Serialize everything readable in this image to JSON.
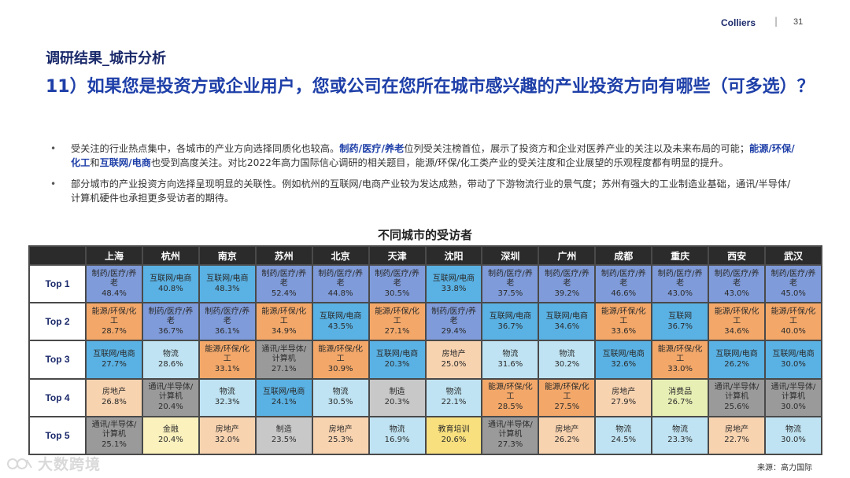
{
  "header": {
    "brand": "Colliers",
    "separator": "|",
    "page_number": "31"
  },
  "section_title": "调研结果_城市分析",
  "main_title": "11）如果您是投资方或企业用户，您或公司在您所在城市感兴趣的产业投资方向有哪些（可多选）？",
  "bullets": {
    "b1": {
      "t1": "受关注的行业热点集中，各城市的产业方向选择同质化也较高。",
      "h1": "制药/医疗/养老",
      "t2": "位列受关注榜首位，展示了投资方和企业对医养产业的关注以及未来布局的可能；",
      "h2": "能源/环保/化工",
      "t3": "和",
      "h3": "互联网/电商",
      "t4": "也受到高度关注。对比2022年高力国际信心调研的相关题目，能源/环保/化工类产业的受关注度和企业展望的乐观程度都有明显的提升。"
    },
    "b2": {
      "t1": "部分城市的产业投资方向选择呈现明显的关联性。例如杭州的互联网/电商产业较为发达成熟，带动了下游物流行业的景气度；苏州有强大的工业制造业基础，通讯/半导体/计算机硬件也承担更多受访者的期待。"
    }
  },
  "table": {
    "title": "不同城市的受访者",
    "cities": [
      "上海",
      "杭州",
      "南京",
      "苏州",
      "北京",
      "天津",
      "沈阳",
      "深圳",
      "广州",
      "成都",
      "重庆",
      "西安",
      "武汉"
    ],
    "rows": [
      {
        "label": "Top 1",
        "cells": [
          {
            "ind": "制药/医疗/养老",
            "pct": "48.4%"
          },
          {
            "ind": "互联网/电商",
            "pct": "40.8%"
          },
          {
            "ind": "互联网/电商",
            "pct": "48.3%"
          },
          {
            "ind": "制药/医疗/养老",
            "pct": "52.4%"
          },
          {
            "ind": "制药/医疗/养老",
            "pct": "44.8%"
          },
          {
            "ind": "制药/医疗/养老",
            "pct": "30.5%"
          },
          {
            "ind": "互联网/电商",
            "pct": "33.8%"
          },
          {
            "ind": "制药/医疗/养老",
            "pct": "37.5%"
          },
          {
            "ind": "制药/医疗/养老",
            "pct": "39.2%"
          },
          {
            "ind": "制药/医疗/养老",
            "pct": "46.6%"
          },
          {
            "ind": "制药/医疗/养老",
            "pct": "43.0%"
          },
          {
            "ind": "制药/医疗/养老",
            "pct": "43.0%"
          },
          {
            "ind": "制药/医疗/养老",
            "pct": "45.0%"
          }
        ]
      },
      {
        "label": "Top 2",
        "cells": [
          {
            "ind": "能源/环保/化工",
            "pct": "28.7%"
          },
          {
            "ind": "制药/医疗/养老",
            "pct": "36.7%"
          },
          {
            "ind": "制药/医疗/养老",
            "pct": "36.1%"
          },
          {
            "ind": "能源/环保/化工",
            "pct": "34.9%"
          },
          {
            "ind": "互联网/电商",
            "pct": "43.5%"
          },
          {
            "ind": "能源/环保/化工",
            "pct": "27.1%"
          },
          {
            "ind": "制药/医疗/养老",
            "pct": "29.4%"
          },
          {
            "ind": "互联网/电商",
            "pct": "36.7%"
          },
          {
            "ind": "互联网/电商",
            "pct": "34.6%"
          },
          {
            "ind": "能源/环保/化工",
            "pct": "33.6%"
          },
          {
            "ind": "互联网",
            "pct": "36.7%"
          },
          {
            "ind": "能源/环保/化工",
            "pct": "34.6%"
          },
          {
            "ind": "能源/环保/化工",
            "pct": "40.0%"
          }
        ]
      },
      {
        "label": "Top 3",
        "cells": [
          {
            "ind": "互联网/电商",
            "pct": "27.7%"
          },
          {
            "ind": "物流",
            "pct": "28.6%"
          },
          {
            "ind": "能源/环保/化工",
            "pct": "33.1%"
          },
          {
            "ind": "通讯/半导体/计算机",
            "pct": "27.1%"
          },
          {
            "ind": "能源/环保/化工",
            "pct": "30.9%"
          },
          {
            "ind": "互联网/电商",
            "pct": "20.3%"
          },
          {
            "ind": "房地产",
            "pct": "25.0%"
          },
          {
            "ind": "物流",
            "pct": "31.6%"
          },
          {
            "ind": "物流",
            "pct": "30.2%"
          },
          {
            "ind": "互联网/电商",
            "pct": "32.6%"
          },
          {
            "ind": "能源/环保/化工",
            "pct": "33.0%"
          },
          {
            "ind": "互联网/电商",
            "pct": "26.2%"
          },
          {
            "ind": "互联网/电商",
            "pct": "30.0%"
          }
        ]
      },
      {
        "label": "Top 4",
        "cells": [
          {
            "ind": "房地产",
            "pct": "26.8%"
          },
          {
            "ind": "通讯/半导体/计算机",
            "pct": "20.4%"
          },
          {
            "ind": "物流",
            "pct": "32.3%"
          },
          {
            "ind": "互联网/电商",
            "pct": "24.1%"
          },
          {
            "ind": "物流",
            "pct": "30.5%"
          },
          {
            "ind": "制造",
            "pct": "20.3%"
          },
          {
            "ind": "物流",
            "pct": "22.1%"
          },
          {
            "ind": "能源/环保/化工",
            "pct": "28.5%"
          },
          {
            "ind": "能源/环保/化工",
            "pct": "27.5%"
          },
          {
            "ind": "房地产",
            "pct": "27.9%"
          },
          {
            "ind": "消费品",
            "pct": "26.7%"
          },
          {
            "ind": "通讯/半导体/计算机",
            "pct": "25.6%"
          },
          {
            "ind": "通讯/半导体/计算机",
            "pct": "30.0%"
          }
        ]
      },
      {
        "label": "Top 5",
        "cells": [
          {
            "ind": "通讯/半导体/计算机",
            "pct": "25.1%"
          },
          {
            "ind": "金融",
            "pct": "20.4%"
          },
          {
            "ind": "房地产",
            "pct": "32.0%"
          },
          {
            "ind": "制造",
            "pct": "23.5%"
          },
          {
            "ind": "房地产",
            "pct": "25.3%"
          },
          {
            "ind": "物流",
            "pct": "16.9%"
          },
          {
            "ind": "教育培训",
            "pct": "20.6%"
          },
          {
            "ind": "通讯/半导体/计算机",
            "pct": "27.3%"
          },
          {
            "ind": "房地产",
            "pct": "26.2%"
          },
          {
            "ind": "物流",
            "pct": "24.5%"
          },
          {
            "ind": "物流",
            "pct": "23.3%"
          },
          {
            "ind": "房地产",
            "pct": "22.7%"
          },
          {
            "ind": "物流",
            "pct": "30.0%"
          }
        ]
      }
    ],
    "industry_colors": {
      "制药/医疗/养老": "#7f9bd9",
      "互联网/电商": "#5ab1e3",
      "互联网": "#5ab1e3",
      "能源/环保/化工": "#f3a86a",
      "物流": "#bfe3f2",
      "通讯/半导体/计算机": "#9a9a9a",
      "房地产": "#f8d3b0",
      "制造": "#c8c8c8",
      "金融": "#fbf1bd",
      "教育培训": "#f8e07e",
      "消费品": "#e8efb4"
    }
  },
  "source": "来源：高力国际",
  "watermark": "大数跨境"
}
